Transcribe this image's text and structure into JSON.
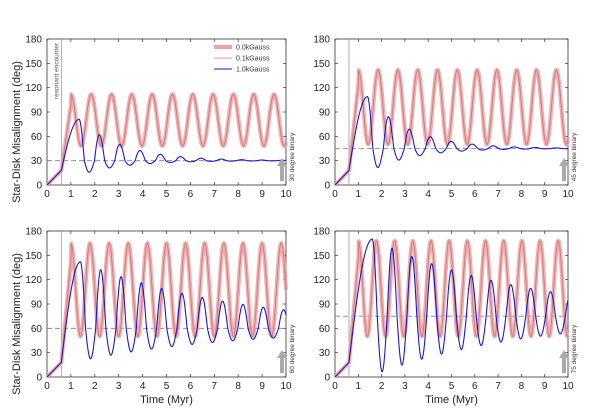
{
  "chart_data": [
    {
      "type": "line",
      "panel": "top-left",
      "xlabel": "",
      "ylabel": "Star-Disk Misalignment (deg)",
      "xlim": [
        0,
        10
      ],
      "ylim": [
        0,
        180
      ],
      "xticks": [
        "0",
        "1",
        "2",
        "3",
        "4",
        "5",
        "6",
        "7",
        "8",
        "9",
        "10"
      ],
      "yticks": [
        "0",
        "30",
        "60",
        "90",
        "120",
        "150",
        "180"
      ],
      "binary_angle": 30,
      "side_label": "30 degree binary",
      "encounter_time": 0.6,
      "encounter_label": "resonant encounter",
      "legend_position": "top-right",
      "series": [
        {
          "name": "0.0kGauss",
          "color": "#f0a0a0",
          "period": 0.85,
          "min": 48,
          "max": 112
        },
        {
          "name": "0.1kGauss",
          "color": "#c87878",
          "period": 0.85,
          "min": 48,
          "max": 112
        },
        {
          "name": "1.0kGauss",
          "color": "#1a1acc",
          "first_peak_time": 1.35,
          "first_peak": 81,
          "first_trough": 12,
          "period": 0.85,
          "settle": 30
        }
      ]
    },
    {
      "type": "line",
      "panel": "top-right",
      "xlabel": "",
      "ylabel": "",
      "xlim": [
        0,
        10
      ],
      "ylim": [
        0,
        180
      ],
      "xticks": [
        "0",
        "1",
        "2",
        "3",
        "4",
        "5",
        "6",
        "7",
        "8",
        "9",
        "10"
      ],
      "yticks": [
        "0",
        "30",
        "60",
        "90",
        "120",
        "150",
        "180"
      ],
      "binary_angle": 45,
      "side_label": "45 degree binary",
      "encounter_time": 0.6,
      "series": [
        {
          "name": "0.0kGauss",
          "color": "#f0a0a0",
          "period": 0.85,
          "min": 50,
          "max": 142
        },
        {
          "name": "0.1kGauss",
          "color": "#c87878",
          "period": 0.85,
          "min": 50,
          "max": 142
        },
        {
          "name": "1.0kGauss",
          "color": "#1a1acc",
          "first_peak_time": 1.4,
          "first_peak": 109,
          "first_trough": 15,
          "period": 0.9,
          "settle": 45
        }
      ]
    },
    {
      "type": "line",
      "panel": "bottom-left",
      "xlabel": "Time (Myr)",
      "ylabel": "Star-Disk Misalignment (deg)",
      "xlim": [
        0,
        10
      ],
      "ylim": [
        0,
        180
      ],
      "xticks": [
        "0",
        "1",
        "2",
        "3",
        "4",
        "5",
        "6",
        "7",
        "8",
        "9",
        "10"
      ],
      "yticks": [
        "0",
        "30",
        "60",
        "90",
        "120",
        "150",
        "180"
      ],
      "binary_angle": 60,
      "side_label": "60 degree binary",
      "encounter_time": 0.6,
      "series": [
        {
          "name": "0.0kGauss",
          "color": "#f0a0a0",
          "period": 0.8,
          "min": 50,
          "max": 165
        },
        {
          "name": "0.1kGauss",
          "color": "#c87878",
          "period": 0.8,
          "min": 50,
          "max": 165
        },
        {
          "name": "1.0kGauss",
          "color": "#1a1acc",
          "first_peak_time": 1.4,
          "first_peak": 142,
          "first_trough": 20,
          "period": 0.85,
          "settle": 60
        }
      ]
    },
    {
      "type": "line",
      "panel": "bottom-right",
      "xlabel": "Time (Myr)",
      "ylabel": "",
      "xlim": [
        0,
        10
      ],
      "ylim": [
        0,
        180
      ],
      "xticks": [
        "0",
        "1",
        "2",
        "3",
        "4",
        "5",
        "6",
        "7",
        "8",
        "9",
        "10"
      ],
      "yticks": [
        "0",
        "30",
        "60",
        "90",
        "120",
        "150",
        "180"
      ],
      "binary_angle": 75,
      "side_label": "75 degree binary",
      "encounter_time": 0.6,
      "series": [
        {
          "name": "0.0kGauss",
          "color": "#f0a0a0",
          "period": 0.78,
          "min": 50,
          "max": 168
        },
        {
          "name": "0.1kGauss",
          "color": "#c87878",
          "period": 0.78,
          "min": 50,
          "max": 168
        },
        {
          "name": "1.0kGauss",
          "color": "#1a1acc",
          "first_peak_time": 1.6,
          "first_peak": 170,
          "first_trough": 2,
          "period": 0.85,
          "settle": 75
        }
      ]
    }
  ]
}
